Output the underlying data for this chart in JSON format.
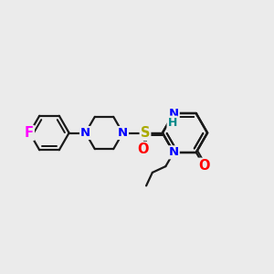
{
  "bg_color": "#ebebeb",
  "bond_color": "#1a1a1a",
  "bond_width": 1.6,
  "atom_colors": {
    "N": "#0000ff",
    "O": "#ff0000",
    "S": "#aaaa00",
    "F": "#ff00ff",
    "H": "#008888",
    "C": "#1a1a1a"
  },
  "font_size": 9.5
}
